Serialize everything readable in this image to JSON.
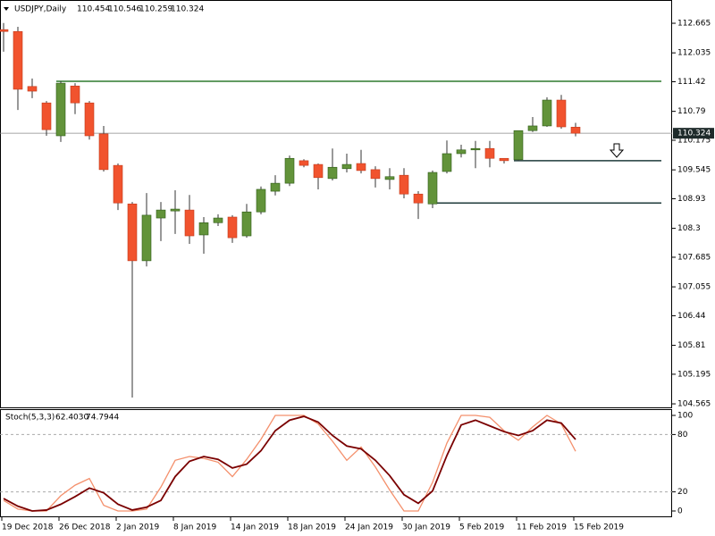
{
  "chart_data": [
    {
      "type": "candlestick",
      "title": "USDJPY,Daily",
      "categories": [
        "19 Dec 2018",
        null,
        null,
        null,
        "26 Dec 2018",
        null,
        null,
        null,
        "2 Jan 2019",
        null,
        null,
        null,
        "8 Jan 2019",
        null,
        null,
        null,
        "14 Jan 2019",
        null,
        null,
        null,
        "18 Jan 2019",
        null,
        null,
        null,
        "24 Jan 2019",
        null,
        null,
        null,
        "30 Jan 2019",
        null,
        null,
        null,
        "5 Feb 2019",
        null,
        null,
        null,
        "11 Feb 2019",
        null,
        null,
        null,
        "15 Feb 2019"
      ],
      "open": [
        112.53,
        112.49,
        111.32,
        110.97,
        110.27,
        111.33,
        110.97,
        110.31,
        109.64,
        108.82,
        107.61,
        108.52,
        108.67,
        108.69,
        108.16,
        108.42,
        108.54,
        108.14,
        108.65,
        109.09,
        109.26,
        109.74,
        109.66,
        109.36,
        109.57,
        109.68,
        109.55,
        109.34,
        109.43,
        109.03,
        108.82,
        109.51,
        109.89,
        109.97,
        110.0,
        109.79,
        109.76,
        110.38,
        110.48,
        111.03,
        110.454
      ],
      "high": [
        112.67,
        112.59,
        111.49,
        111.01,
        111.43,
        111.39,
        111.01,
        110.48,
        109.68,
        108.86,
        109.05,
        108.86,
        109.11,
        109.01,
        108.54,
        108.6,
        108.58,
        108.82,
        109.19,
        109.43,
        109.85,
        109.77,
        109.68,
        110.0,
        109.89,
        109.97,
        109.62,
        109.58,
        109.58,
        109.09,
        109.53,
        110.17,
        110.08,
        110.16,
        110.16,
        109.79,
        110.38,
        110.67,
        111.09,
        111.14,
        110.546
      ],
      "low": [
        112.06,
        110.82,
        111.07,
        110.27,
        110.14,
        110.73,
        110.19,
        109.51,
        108.69,
        104.7,
        107.49,
        108.03,
        108.18,
        107.97,
        107.76,
        108.35,
        107.99,
        108.1,
        108.6,
        109.0,
        109.2,
        109.6,
        109.13,
        109.32,
        109.49,
        109.47,
        109.17,
        109.13,
        108.94,
        108.5,
        108.73,
        109.47,
        109.81,
        109.58,
        109.6,
        109.68,
        109.74,
        110.35,
        110.46,
        110.42,
        110.259
      ],
      "close": [
        112.49,
        111.26,
        111.22,
        110.4,
        111.39,
        110.97,
        110.27,
        109.55,
        108.84,
        107.61,
        108.58,
        108.69,
        108.71,
        108.14,
        108.42,
        108.52,
        108.1,
        108.65,
        109.13,
        109.26,
        109.79,
        109.64,
        109.38,
        109.6,
        109.66,
        109.53,
        109.36,
        109.4,
        109.03,
        108.84,
        109.49,
        109.89,
        109.97,
        110.0,
        109.79,
        109.74,
        110.38,
        110.48,
        111.03,
        110.46,
        110.324
      ],
      "up_color": "#62933a",
      "down_color": "#f1532e",
      "levels": [
        {
          "value": 111.43,
          "color": "#2f7a2f"
        },
        {
          "value": 109.74,
          "color": "#1f3b3b"
        },
        {
          "value": 108.84,
          "color": "#1f3b3b"
        }
      ],
      "ylim": [
        104.49,
        113.16
      ],
      "yticks": [
        112.665,
        112.035,
        111.42,
        110.79,
        110.175,
        109.545,
        108.93,
        108.3,
        107.685,
        107.055,
        106.44,
        105.81,
        105.195,
        104.565
      ]
    },
    {
      "type": "line",
      "title": "Stoch(5,3,3)",
      "readout_labels": [
        "62.4030",
        "74.7944"
      ],
      "series": [
        {
          "color": "#f4906c",
          "values": [
            11,
            2,
            0,
            0,
            16,
            27,
            34,
            6,
            0,
            0,
            2,
            25,
            53,
            57,
            55,
            51,
            36,
            54,
            75,
            100,
            100,
            100,
            91,
            73,
            53,
            67,
            46,
            22,
            0,
            0,
            30,
            71,
            100,
            100,
            98,
            84,
            74,
            88,
            100,
            91,
            62.403
          ]
        },
        {
          "color": "#7a0000",
          "values": [
            13,
            5,
            0,
            1,
            7,
            15,
            24,
            19,
            7,
            1,
            4,
            11,
            36,
            52,
            57,
            54,
            45,
            49,
            63,
            84,
            95,
            99,
            93,
            79,
            68,
            65,
            53,
            37,
            17,
            8,
            21,
            58,
            90,
            95,
            89,
            83,
            79,
            84,
            95,
            92,
            74.7944
          ]
        }
      ],
      "ylim": [
        0,
        100
      ],
      "yticks": [
        100,
        80,
        20,
        0
      ]
    }
  ]
}
